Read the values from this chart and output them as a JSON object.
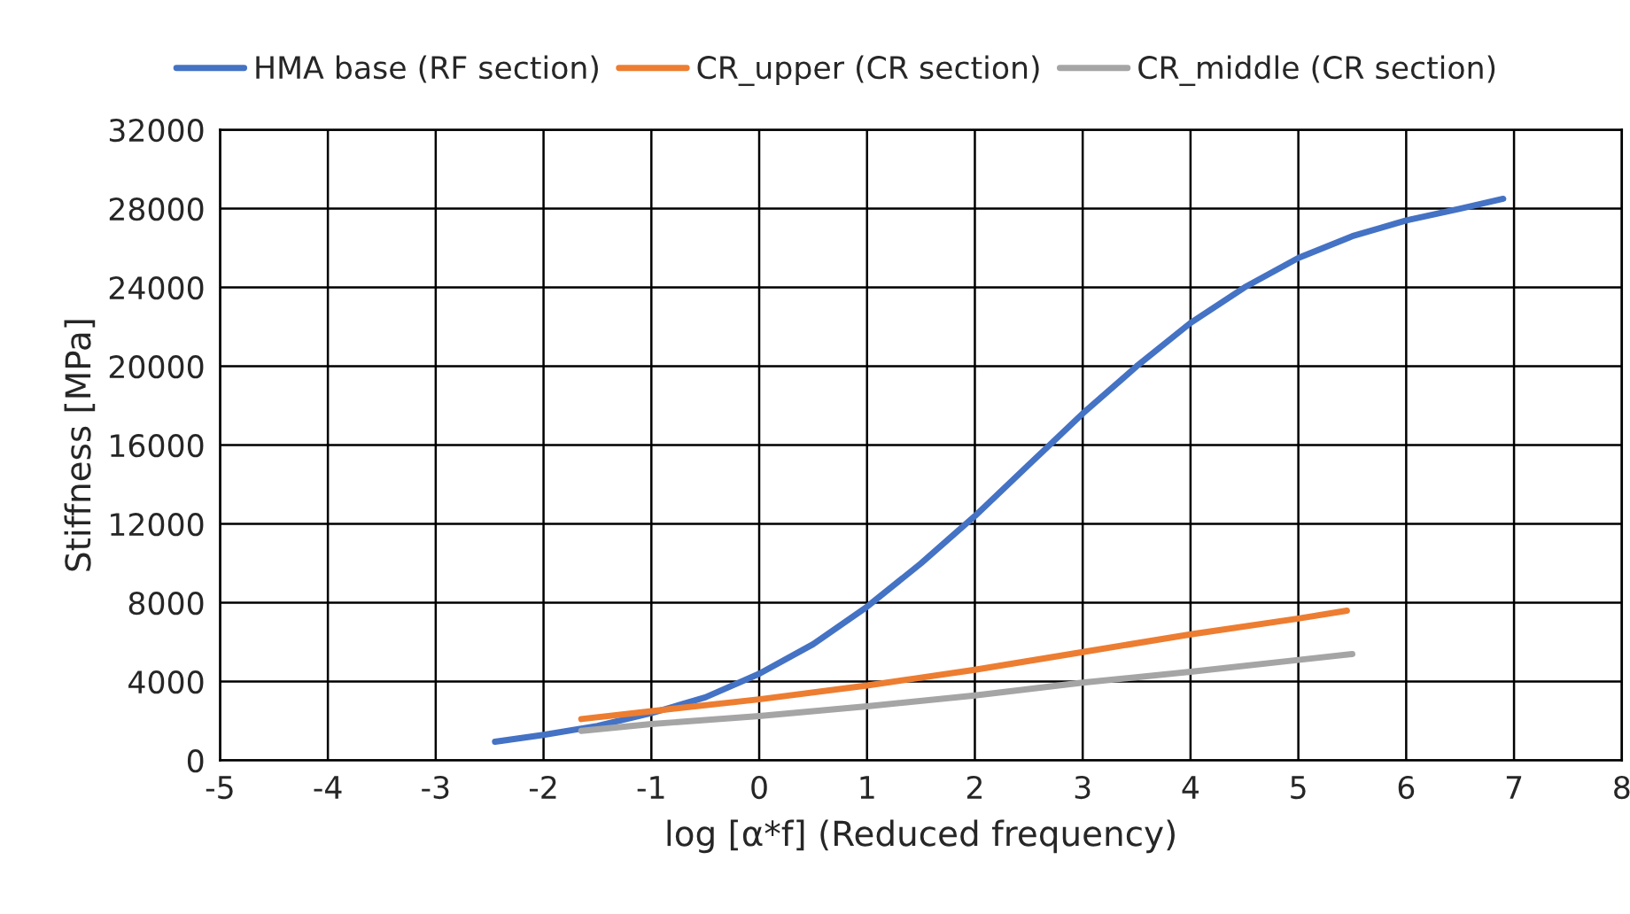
{
  "chart_data": {
    "type": "line",
    "xlabel": "log [α*f] (Reduced frequency)",
    "ylabel": "Stiffness [MPa]",
    "xlim": [
      -5,
      8
    ],
    "xticks": [
      -5,
      -4,
      -3,
      -2,
      -1,
      0,
      1,
      2,
      3,
      4,
      5,
      6,
      7,
      8
    ],
    "ylim": [
      0,
      32000
    ],
    "yticks": [
      0,
      4000,
      8000,
      12000,
      16000,
      20000,
      24000,
      28000,
      32000
    ],
    "grid": true,
    "legend": "top",
    "marker": "none",
    "line_style": "solid",
    "series": [
      {
        "name": "HMA base (RF section)",
        "color": "#4472c4",
        "x": [
          -2.45,
          -2,
          -1.5,
          -1,
          -0.5,
          0,
          0.5,
          1,
          1.5,
          2,
          2.5,
          3,
          3.5,
          4,
          4.5,
          5,
          5.5,
          6,
          6.5,
          6.9
        ],
        "values": [
          950,
          1300,
          1750,
          2400,
          3200,
          4400,
          5900,
          7800,
          10000,
          12400,
          15000,
          17600,
          20000,
          22200,
          24000,
          25500,
          26600,
          27400,
          28000,
          28500
        ]
      },
      {
        "name": "CR_upper (CR section)",
        "color": "#ed7d31",
        "x": [
          -1.65,
          -1,
          0,
          1,
          2,
          3,
          4,
          5,
          5.45
        ],
        "values": [
          2100,
          2500,
          3100,
          3800,
          4600,
          5500,
          6400,
          7200,
          7600
        ]
      },
      {
        "name": "CR_middle (CR section)",
        "color": "#a5a5a5",
        "x": [
          -1.65,
          -1,
          0,
          1,
          2,
          3,
          4,
          5,
          5.5
        ],
        "values": [
          1500,
          1850,
          2250,
          2750,
          3300,
          3950,
          4500,
          5100,
          5400
        ]
      }
    ]
  }
}
